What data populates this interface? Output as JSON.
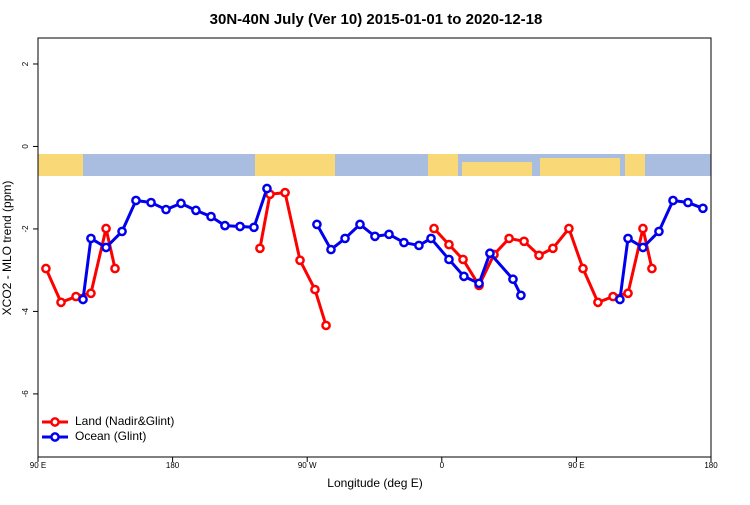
{
  "chart_data": {
    "type": "line",
    "title": "30N-40N July (Ver 10)   2015-01-01 to 2020-12-18",
    "x_label": "Longitude (deg E)",
    "y_label": "XCO2 - MLO trend (ppm)",
    "xlim": [
      90,
      540
    ],
    "xticks": [
      {
        "value": 90,
        "label": "90 E"
      },
      180,
      {
        "value": 270,
        "label": "90 W"
      },
      {
        "value": 360,
        "label": "0"
      },
      {
        "value": 450,
        "label": "90 E"
      },
      {
        "value": 540,
        "label": "180"
      }
    ],
    "ylim": [
      -7.53,
      2.63
    ],
    "yticks": [
      -6,
      -4,
      -2,
      0,
      2
    ],
    "legend": "bottom-left",
    "series": [
      {
        "name": "Land (Nadir&Glint)",
        "color": "#ff0000",
        "x": [
          95.3,
          105.4,
          115.4,
          125.4,
          135.5,
          141.5,
          null,
          238.4,
          245.1,
          255.2,
          265.2,
          275.2,
          282.6,
          null,
          354.8,
          364.8,
          374.2,
          384.9,
          394.9,
          405.0,
          415.0,
          425.0,
          434.3,
          445.0,
          454.4,
          464.4,
          474.5,
          484.5,
          494.5,
          500.5
        ],
        "values": [
          -2.96,
          -3.78,
          -3.64,
          -3.56,
          -1.99,
          -2.96,
          null,
          -2.47,
          -1.16,
          -1.12,
          -2.76,
          -3.47,
          -4.34,
          null,
          -1.99,
          -2.38,
          -2.74,
          -3.37,
          -2.62,
          -2.23,
          -2.3,
          -2.64,
          -2.47,
          -1.99,
          -2.96,
          -3.78,
          -3.64,
          -3.56,
          -1.99,
          -2.96
        ]
      },
      {
        "name": "Ocean (Glint)",
        "color": "#0000ee",
        "x": [
          120.1,
          125.4,
          135.5,
          146.2,
          155.5,
          165.6,
          175.6,
          185.6,
          195.6,
          205.7,
          215.0,
          225.1,
          234.4,
          243.1,
          null,
          276.5,
          285.9,
          295.3,
          305.3,
          315.3,
          324.7,
          334.7,
          344.7,
          352.8,
          364.8,
          374.8,
          384.9,
          392.2,
          407.6,
          412.9,
          null,
          479.1,
          484.5,
          494.5,
          505.2,
          514.6,
          524.6,
          534.6
        ],
        "values": [
          -3.71,
          -2.23,
          -2.45,
          -2.06,
          -1.31,
          -1.36,
          -1.53,
          -1.38,
          -1.55,
          -1.7,
          -1.92,
          -1.94,
          -1.96,
          -1.02,
          null,
          -1.89,
          -2.5,
          -2.23,
          -1.89,
          -2.18,
          -2.13,
          -2.33,
          -2.4,
          -2.23,
          -2.74,
          -3.15,
          -3.32,
          -2.59,
          -3.22,
          -3.61,
          null,
          -3.71,
          -2.23,
          -2.45,
          -2.06,
          -1.31,
          -1.36,
          -1.5
        ]
      }
    ]
  }
}
